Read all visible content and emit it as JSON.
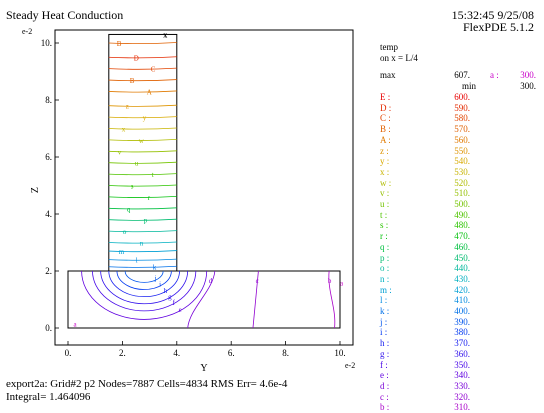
{
  "header": {
    "title": "Steady Heat Conduction",
    "timestamp": "15:32:45 9/25/08",
    "version": "FlexPDE 5.1.2"
  },
  "legend": {
    "title": "temp",
    "subtitle": "on x = L/4",
    "max_label": "max",
    "max_value": "607.",
    "max_code": "a :",
    "max_code_value": "300.",
    "min_label": "min",
    "min_value": "300.",
    "levels": [
      {
        "label": "E :",
        "value": "600.",
        "color": "#e80000"
      },
      {
        "label": "D :",
        "value": "590.",
        "color": "#e42a00"
      },
      {
        "label": "C :",
        "value": "580.",
        "color": "#e24400"
      },
      {
        "label": "B :",
        "value": "570.",
        "color": "#e06000"
      },
      {
        "label": "A :",
        "value": "560.",
        "color": "#e07a00"
      },
      {
        "label": "z :",
        "value": "550.",
        "color": "#de9400"
      },
      {
        "label": "y :",
        "value": "540.",
        "color": "#d8aa00"
      },
      {
        "label": "x :",
        "value": "530.",
        "color": "#c8b400"
      },
      {
        "label": "w :",
        "value": "520.",
        "color": "#b0bc00"
      },
      {
        "label": "v :",
        "value": "510.",
        "color": "#94c000"
      },
      {
        "label": "u :",
        "value": "500.",
        "color": "#74c400"
      },
      {
        "label": "t :",
        "value": "490.",
        "color": "#50c400"
      },
      {
        "label": "s :",
        "value": "480.",
        "color": "#2cc400"
      },
      {
        "label": "r :",
        "value": "470.",
        "color": "#08c210"
      },
      {
        "label": "q :",
        "value": "460.",
        "color": "#00c040"
      },
      {
        "label": "p :",
        "value": "450.",
        "color": "#00bc70"
      },
      {
        "label": "o :",
        "value": "440.",
        "color": "#00b89c"
      },
      {
        "label": "n :",
        "value": "430.",
        "color": "#00b0c0"
      },
      {
        "label": "m :",
        "value": "420.",
        "color": "#00a0d4"
      },
      {
        "label": "l :",
        "value": "410.",
        "color": "#008ae0"
      },
      {
        "label": "k :",
        "value": "400.",
        "color": "#0070e8"
      },
      {
        "label": "j :",
        "value": "390.",
        "color": "#0054ec"
      },
      {
        "label": "i :",
        "value": "380.",
        "color": "#0038f0"
      },
      {
        "label": "h :",
        "value": "370.",
        "color": "#1820f0"
      },
      {
        "label": "g :",
        "value": "360.",
        "color": "#3010ec"
      },
      {
        "label": "f :",
        "value": "350.",
        "color": "#4808e8"
      },
      {
        "label": "e :",
        "value": "340.",
        "color": "#6000e0"
      },
      {
        "label": "d :",
        "value": "330.",
        "color": "#7800d8"
      },
      {
        "label": "c :",
        "value": "320.",
        "color": "#9000d0"
      },
      {
        "label": "b :",
        "value": "310.",
        "color": "#a800c8"
      }
    ]
  },
  "footer": {
    "stats": "export2a:  Grid#2  p2  Nodes=7887 Cells=4834 RMS Err= 4.6e-4",
    "integral": "Integral=  1.464096"
  },
  "chart_data": {
    "type": "contour",
    "xlabel": "Y",
    "ylabel": "Z",
    "x_scale_label": "e-2",
    "y_scale_label": "e-2",
    "xlim": [
      0,
      10
    ],
    "ylim": [
      0,
      10
    ],
    "xticks": [
      0,
      2,
      4,
      6,
      8,
      10
    ],
    "yticks": [
      0,
      2,
      4,
      6,
      8,
      10
    ],
    "xtick_labels": [
      "0.",
      "2.",
      "4.",
      "6.",
      "8.",
      "10."
    ],
    "ytick_labels": [
      "0.",
      "2.",
      "4.",
      "6.",
      "8.",
      "10."
    ],
    "grid": false,
    "geometry": {
      "base_plate": {
        "x": [
          0,
          10
        ],
        "z": [
          0,
          2
        ]
      },
      "fin": {
        "x": [
          1.5,
          4
        ],
        "z": [
          2,
          10.3
        ]
      }
    },
    "fin_contours": [
      {
        "label": "B",
        "z": 10.0
      },
      {
        "label": "D",
        "z": 9.5
      },
      {
        "label": "C",
        "z": 9.1
      },
      {
        "label": "B",
        "z": 8.7
      },
      {
        "label": "A",
        "z": 8.3
      },
      {
        "label": "z",
        "z": 7.8
      },
      {
        "label": "y",
        "z": 7.4
      },
      {
        "label": "x",
        "z": 7.0
      },
      {
        "label": "w",
        "z": 6.6
      },
      {
        "label": "v",
        "z": 6.2
      },
      {
        "label": "u",
        "z": 5.8
      },
      {
        "label": "t",
        "z": 5.4
      },
      {
        "label": "s",
        "z": 5.0
      },
      {
        "label": "r",
        "z": 4.6
      },
      {
        "label": "q",
        "z": 4.2
      },
      {
        "label": "p",
        "z": 3.8
      },
      {
        "label": "o",
        "z": 3.4
      },
      {
        "label": "n",
        "z": 3.0
      },
      {
        "label": "m",
        "z": 2.7
      },
      {
        "label": "l",
        "z": 2.4
      },
      {
        "label": "k",
        "z": 2.15
      }
    ],
    "plate_contours": [
      {
        "label": "j",
        "cx": 2.8,
        "rx": 0.7,
        "rz": 0.4
      },
      {
        "label": "i",
        "cx": 2.8,
        "rx": 1.0,
        "rz": 0.65
      },
      {
        "label": "h",
        "cx": 2.8,
        "rx": 1.3,
        "rz": 0.9
      },
      {
        "label": "g",
        "cx": 2.8,
        "rx": 1.6,
        "rz": 1.15
      },
      {
        "label": "f",
        "cx": 2.8,
        "rx": 1.9,
        "rz": 1.4
      },
      {
        "label": "e",
        "cx": 2.8,
        "rx": 2.3,
        "rz": 1.7
      }
    ],
    "plate_lines": [
      {
        "label": "d",
        "x_top": 5.4,
        "x_bottom": 4.4
      },
      {
        "label": "c",
        "x_top": 7.0,
        "x_bottom": 6.8
      },
      {
        "label": "b",
        "x_top": 9.6,
        "x_bottom": 9.8
      }
    ],
    "point_labels": [
      {
        "label": "a",
        "x": 0.2,
        "z": 0.05
      },
      {
        "label": "a",
        "x": 10.0,
        "z": 1.5
      }
    ],
    "max_marker": {
      "label": "x",
      "x": 3.5,
      "z": 10.2
    }
  }
}
